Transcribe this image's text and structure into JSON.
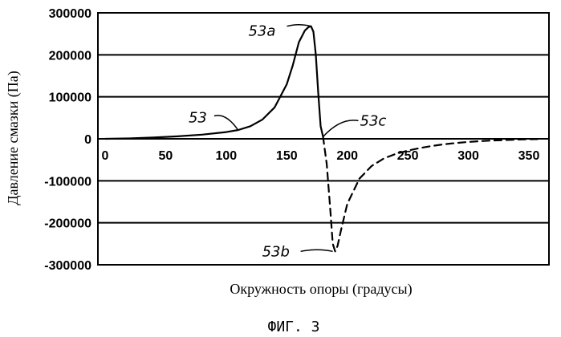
{
  "chart_data": {
    "type": "line",
    "xlabel": "Окружность опоры (градусы)",
    "ylabel": "Давление смазки (Па)",
    "xlim": [
      0,
      360
    ],
    "ylim": [
      -300000,
      300000
    ],
    "x_ticks": [
      "0",
      "50",
      "100",
      "150",
      "200",
      "250",
      "300",
      "350"
    ],
    "y_ticks": [
      "300000",
      "200000",
      "100000",
      "0",
      "-100000",
      "-200000",
      "-300000"
    ],
    "grid": "horizontal",
    "series": [
      {
        "name": "53",
        "style": "solid",
        "x": [
          0,
          20,
          40,
          60,
          80,
          100,
          110,
          120,
          130,
          140,
          150,
          155,
          160,
          165,
          168,
          170,
          172,
          174,
          176,
          178,
          180
        ],
        "y": [
          0,
          1000,
          3000,
          6000,
          10000,
          16000,
          21000,
          30000,
          46000,
          75000,
          130000,
          175000,
          230000,
          258000,
          266000,
          268000,
          255000,
          200000,
          110000,
          30000,
          5000
        ]
      },
      {
        "name": "",
        "style": "dashed",
        "x": [
          180,
          183,
          186,
          188,
          190,
          192,
          195,
          200,
          210,
          220,
          230,
          240,
          250,
          260,
          270,
          280,
          290,
          300,
          310,
          320,
          330,
          340,
          350,
          360
        ],
        "y": [
          5000,
          -60000,
          -170000,
          -250000,
          -268000,
          -255000,
          -215000,
          -155000,
          -95000,
          -65000,
          -47000,
          -36000,
          -28000,
          -22000,
          -17000,
          -13000,
          -10000,
          -7500,
          -5500,
          -4000,
          -3000,
          -2000,
          -1200,
          -500
        ]
      }
    ],
    "annotations": [
      {
        "text": "53a",
        "x": 170,
        "y": 268000
      },
      {
        "text": "53",
        "x": 110,
        "y": 20000
      },
      {
        "text": "53c",
        "x": 180,
        "y": 5000
      },
      {
        "text": "53b",
        "x": 188,
        "y": -268000
      }
    ],
    "caption": "ФИГ. 3"
  }
}
